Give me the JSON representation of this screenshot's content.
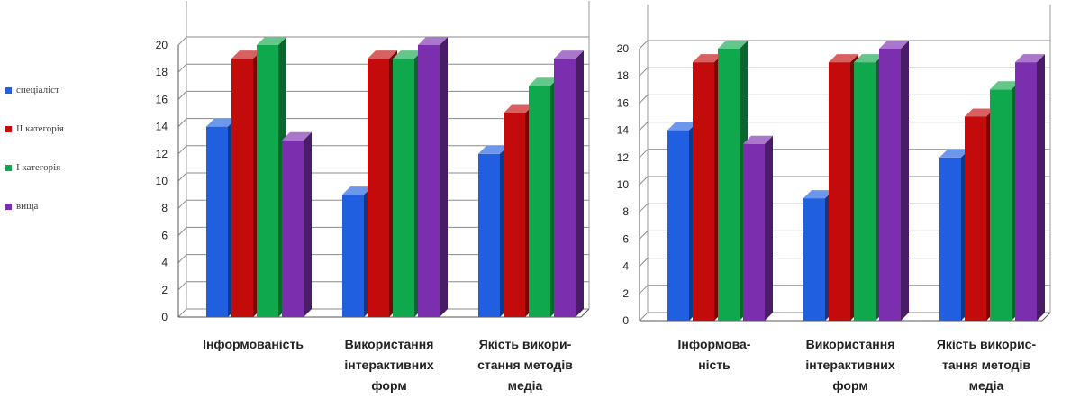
{
  "legend": {
    "items": [
      {
        "label": "спеціаліст",
        "color": "#1f5fe0"
      },
      {
        "label": "ІІ категорія",
        "color": "#c40b0b"
      },
      {
        "label": "І категорія",
        "color": "#10a84c"
      },
      {
        "label": "вища",
        "color": "#7b2fae"
      }
    ]
  },
  "chart_data": [
    {
      "type": "bar",
      "ylim": [
        0,
        20
      ],
      "yticks": [
        "0",
        "2",
        "4",
        "6",
        "8",
        "10",
        "12",
        "14",
        "16",
        "18",
        "20"
      ],
      "categories": [
        [
          "Інформованість"
        ],
        [
          "Використання",
          "інтерактивних",
          "форм"
        ],
        [
          "Якість викори-",
          "стання методів",
          "медіа"
        ]
      ],
      "series": [
        {
          "name": "спеціаліст",
          "values": [
            14,
            9,
            12
          ]
        },
        {
          "name": "ІІ категорія",
          "values": [
            19,
            19,
            15
          ]
        },
        {
          "name": "І категорія",
          "values": [
            20,
            19,
            17
          ]
        },
        {
          "name": "вища",
          "values": [
            13,
            20,
            19
          ]
        }
      ]
    },
    {
      "type": "bar",
      "ylim": [
        0,
        20
      ],
      "yticks": [
        "0",
        "2",
        "4",
        "6",
        "8",
        "10",
        "12",
        "14",
        "16",
        "18",
        "20"
      ],
      "categories": [
        [
          "Інформова-",
          "ність"
        ],
        [
          "Використання",
          "інтерактивних",
          "форм"
        ],
        [
          "Якість викорис-",
          "тання методів",
          "медіа"
        ]
      ],
      "series": [
        {
          "name": "спеціаліст",
          "values": [
            14,
            9,
            12
          ]
        },
        {
          "name": "ІІ категорія",
          "values": [
            19,
            19,
            15
          ]
        },
        {
          "name": "І категорія",
          "values": [
            20,
            19,
            17
          ]
        },
        {
          "name": "вища",
          "values": [
            13,
            20,
            19
          ]
        }
      ]
    }
  ]
}
